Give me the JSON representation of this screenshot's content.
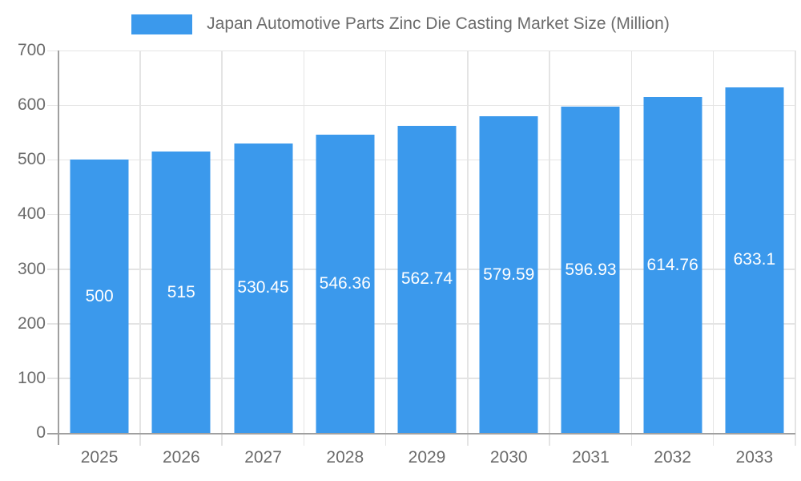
{
  "chart_data": {
    "type": "bar",
    "title": "Japan Automotive Parts Zinc Die Casting Market Size (Million)",
    "legend_entries": [
      "Japan Automotive Parts Zinc Die Casting Market Size (Million)"
    ],
    "legend_position": "top",
    "categories": [
      "2025",
      "2026",
      "2027",
      "2028",
      "2029",
      "2030",
      "2031",
      "2032",
      "2033"
    ],
    "values": [
      500,
      515,
      530.45,
      546.36,
      562.74,
      579.59,
      596.93,
      614.76,
      633.1
    ],
    "xlabel": "",
    "ylabel": "",
    "ylim": [
      0,
      700
    ],
    "ytick_interval": 100,
    "yticks": [
      0,
      100,
      200,
      300,
      400,
      500,
      600,
      700
    ],
    "grid": true,
    "value_labels_inside_bars": true
  },
  "colors": {
    "bar": "#3b99ec",
    "gridline": "#e4e4e4",
    "axis_line": "#a0a0a0",
    "axis_label_text": "#6b6b6b",
    "value_label_text": "#ffffff",
    "background": "#ffffff"
  }
}
